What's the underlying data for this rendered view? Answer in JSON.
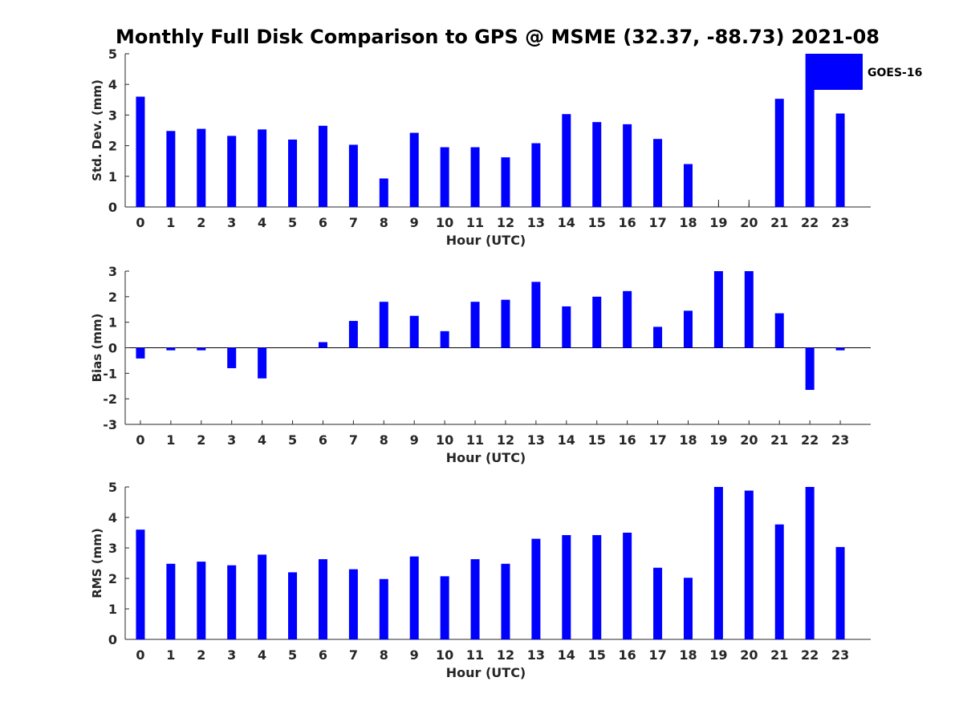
{
  "colors": {
    "bar": "#0000ff",
    "axis": "#262626"
  },
  "chart_data": [
    {
      "type": "bar",
      "title": "Monthly Full Disk Comparison to GPS @ MSME (32.37, -88.73) 2021-08",
      "xlabel": "Hour (UTC)",
      "ylabel": "Std. Dev. (mm)",
      "ylim": [
        0,
        5
      ],
      "yticks": [
        "0",
        "1",
        "2",
        "3",
        "4",
        "5"
      ],
      "categories": [
        "0",
        "1",
        "2",
        "3",
        "4",
        "5",
        "6",
        "7",
        "8",
        "9",
        "10",
        "11",
        "12",
        "13",
        "14",
        "15",
        "16",
        "17",
        "18",
        "19",
        "20",
        "21",
        "22",
        "23"
      ],
      "legend": "GOES-16",
      "legend_position": "top-right",
      "values": [
        3.6,
        2.48,
        2.55,
        2.32,
        2.53,
        2.2,
        2.65,
        2.03,
        0.93,
        2.42,
        1.95,
        1.95,
        1.62,
        2.08,
        3.03,
        2.77,
        2.7,
        2.22,
        1.4,
        0,
        0,
        3.53,
        5.0,
        3.05
      ]
    },
    {
      "type": "bar",
      "xlabel": "Hour (UTC)",
      "ylabel": "Bias (mm)",
      "ylim": [
        -3,
        3
      ],
      "yticks": [
        "-3",
        "-2",
        "-1",
        "0",
        "1",
        "2",
        "3"
      ],
      "categories": [
        "0",
        "1",
        "2",
        "3",
        "4",
        "5",
        "6",
        "7",
        "8",
        "9",
        "10",
        "11",
        "12",
        "13",
        "14",
        "15",
        "16",
        "17",
        "18",
        "19",
        "20",
        "21",
        "22",
        "23"
      ],
      "values": [
        -0.42,
        -0.1,
        -0.1,
        -0.8,
        -1.2,
        0,
        0.22,
        1.05,
        1.8,
        1.25,
        0.65,
        1.8,
        1.88,
        2.58,
        1.62,
        2.0,
        2.22,
        0.82,
        1.45,
        3.0,
        3.0,
        1.35,
        -1.65,
        -0.1
      ]
    },
    {
      "type": "bar",
      "xlabel": "Hour (UTC)",
      "ylabel": "RMS (mm)",
      "ylim": [
        0,
        5
      ],
      "yticks": [
        "0",
        "1",
        "2",
        "3",
        "4",
        "5"
      ],
      "categories": [
        "0",
        "1",
        "2",
        "3",
        "4",
        "5",
        "6",
        "7",
        "8",
        "9",
        "10",
        "11",
        "12",
        "13",
        "14",
        "15",
        "16",
        "17",
        "18",
        "19",
        "20",
        "21",
        "22",
        "23"
      ],
      "values": [
        3.6,
        2.48,
        2.55,
        2.43,
        2.78,
        2.2,
        2.63,
        2.3,
        1.98,
        2.72,
        2.07,
        2.63,
        2.48,
        3.3,
        3.42,
        3.42,
        3.5,
        2.35,
        2.02,
        5.0,
        4.88,
        3.77,
        5.0,
        3.03
      ]
    }
  ]
}
